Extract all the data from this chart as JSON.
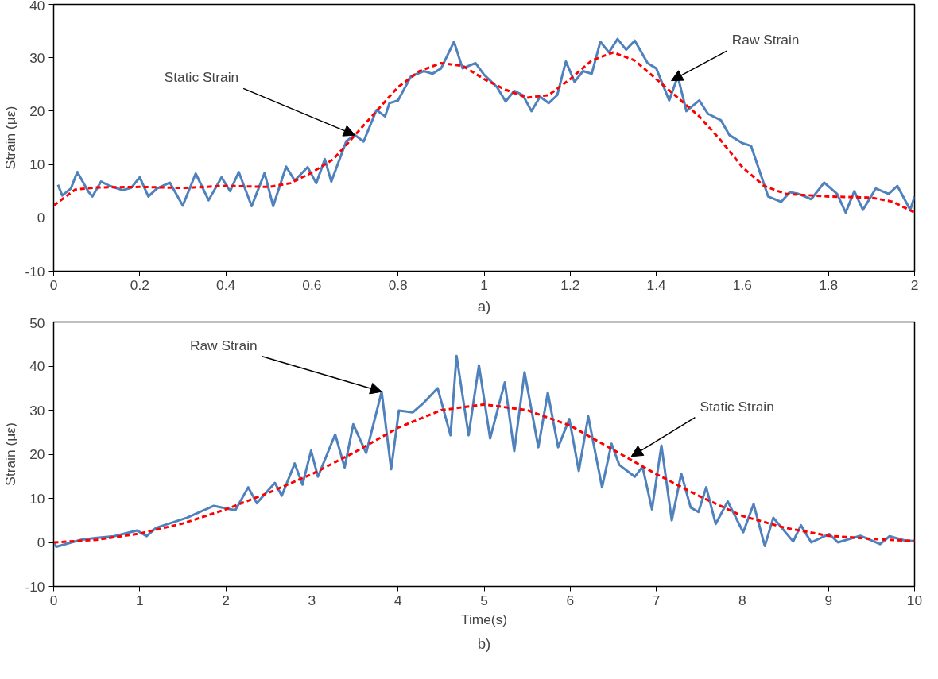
{
  "chart_data": [
    {
      "type": "line",
      "ylabel": "Strain (με)",
      "xlim": [
        0,
        2
      ],
      "ylim": [
        -10,
        40
      ],
      "xticks": [
        0,
        0.2,
        0.4,
        0.6,
        0.8,
        1,
        1.2,
        1.4,
        1.6,
        1.8,
        2
      ],
      "yticks": [
        -10,
        0,
        10,
        20,
        30,
        40
      ],
      "grid": false,
      "series": [
        {
          "color": "#4f81bd",
          "line_style": "solid",
          "x": [
            0.01,
            0.02,
            0.04,
            0.055,
            0.08,
            0.09,
            0.11,
            0.13,
            0.16,
            0.18,
            0.2,
            0.22,
            0.24,
            0.27,
            0.3,
            0.33,
            0.36,
            0.39,
            0.41,
            0.43,
            0.46,
            0.49,
            0.51,
            0.54,
            0.56,
            0.59,
            0.61,
            0.63,
            0.645,
            0.68,
            0.7,
            0.72,
            0.75,
            0.77,
            0.78,
            0.8,
            0.83,
            0.86,
            0.88,
            0.9,
            0.93,
            0.95,
            0.98,
            1.0,
            1.03,
            1.05,
            1.07,
            1.09,
            1.11,
            1.13,
            1.15,
            1.17,
            1.19,
            1.21,
            1.23,
            1.25,
            1.27,
            1.29,
            1.31,
            1.33,
            1.35,
            1.38,
            1.4,
            1.43,
            1.45,
            1.47,
            1.5,
            1.52,
            1.55,
            1.57,
            1.6,
            1.62,
            1.66,
            1.69,
            1.71,
            1.73,
            1.76,
            1.79,
            1.82,
            1.84,
            1.86,
            1.88,
            1.91,
            1.94,
            1.96,
            1.99,
            2.0
          ],
          "values": [
            6.2,
            4.2,
            5.5,
            8.6,
            5.0,
            4.0,
            6.8,
            6.0,
            5.2,
            5.6,
            7.6,
            4.0,
            5.5,
            6.6,
            2.3,
            8.3,
            3.3,
            7.6,
            5.0,
            8.6,
            2.2,
            8.4,
            2.2,
            9.6,
            7.0,
            9.5,
            6.5,
            11.0,
            6.8,
            14.4,
            15.5,
            14.3,
            20.2,
            19.0,
            21.5,
            22.0,
            26.5,
            27.5,
            27.0,
            28.0,
            33.0,
            28.0,
            29.0,
            26.8,
            24.5,
            21.8,
            23.8,
            23.0,
            20.0,
            22.7,
            21.5,
            23.0,
            29.3,
            25.5,
            27.5,
            27.0,
            33.0,
            31.0,
            33.5,
            31.5,
            33.2,
            29.0,
            28.0,
            22.0,
            26.5,
            20.0,
            22.0,
            19.5,
            18.3,
            15.5,
            14.0,
            13.5,
            4.0,
            3.0,
            4.8,
            4.5,
            3.5,
            6.6,
            4.5,
            1.0,
            5.0,
            1.5,
            5.5,
            4.5,
            6.0,
            1.5,
            4.0
          ]
        },
        {
          "color": "#ff0000",
          "line_style": "dashed",
          "x": [
            0.0,
            0.05,
            0.1,
            0.2,
            0.3,
            0.4,
            0.5,
            0.55,
            0.6,
            0.65,
            0.7,
            0.75,
            0.8,
            0.85,
            0.9,
            0.95,
            1.0,
            1.05,
            1.1,
            1.15,
            1.2,
            1.25,
            1.3,
            1.35,
            1.4,
            1.45,
            1.5,
            1.55,
            1.6,
            1.65,
            1.7,
            1.8,
            1.9,
            1.95,
            2.0
          ],
          "values": [
            2.3,
            5.3,
            5.7,
            5.8,
            5.6,
            6.0,
            5.8,
            6.5,
            8.5,
            11.0,
            15.5,
            20.0,
            24.5,
            27.5,
            29.0,
            28.5,
            26.0,
            24.0,
            22.5,
            23.0,
            26.0,
            29.5,
            31.0,
            29.5,
            26.0,
            22.5,
            19.0,
            14.5,
            9.5,
            6.0,
            4.5,
            4.0,
            3.8,
            3.0,
            1.0
          ]
        }
      ],
      "annotations": [
        {
          "text": "Static Strain",
          "x": 0.7,
          "y": 15.5
        },
        {
          "text": "Raw Strain",
          "x": 1.435,
          "y": 25.7
        },
        "a)"
      ]
    },
    {
      "type": "line",
      "xlabel": "Time(s)",
      "ylabel": "Strain (με)",
      "xlim": [
        0,
        10
      ],
      "ylim": [
        -10,
        50
      ],
      "xticks": [
        0,
        1,
        2,
        3,
        4,
        5,
        6,
        7,
        8,
        9,
        10
      ],
      "yticks": [
        -10,
        0,
        10,
        20,
        30,
        40,
        50
      ],
      "grid": false,
      "series": [
        {
          "color": "#4f81bd",
          "line_style": "solid",
          "x": [
            0,
            0.03,
            0.32,
            0.48,
            0.7,
            0.97,
            1.08,
            1.19,
            1.55,
            1.86,
            2.11,
            2.26,
            2.36,
            2.57,
            2.65,
            2.8,
            2.89,
            2.99,
            3.07,
            3.27,
            3.38,
            3.48,
            3.63,
            3.81,
            3.92,
            4.01,
            4.17,
            4.3,
            4.46,
            4.61,
            4.68,
            4.82,
            4.94,
            5.07,
            5.24,
            5.35,
            5.47,
            5.63,
            5.74,
            5.86,
            5.99,
            6.1,
            6.21,
            6.37,
            6.48,
            6.57,
            6.75,
            6.84,
            6.95,
            7.06,
            7.18,
            7.29,
            7.4,
            7.49,
            7.58,
            7.69,
            7.83,
            8.01,
            8.13,
            8.26,
            8.36,
            8.59,
            8.68,
            8.8,
            9.01,
            9.11,
            9.37,
            9.6,
            9.71,
            9.89,
            10
          ],
          "values": [
            0,
            -1,
            0.6,
            1,
            1.4,
            2.7,
            1.4,
            3.3,
            5.6,
            8.3,
            7.3,
            12.5,
            8.9,
            13.5,
            10.6,
            17.9,
            13.1,
            20.8,
            14.9,
            24.5,
            17,
            26.8,
            20.3,
            34.2,
            16.6,
            29.9,
            29.5,
            31.7,
            35,
            24.3,
            42.3,
            24.3,
            40.2,
            23.6,
            36.3,
            20.7,
            38.6,
            21.6,
            34,
            21.6,
            28,
            16.2,
            28.6,
            12.5,
            22.4,
            17.6,
            14.9,
            17.2,
            7.5,
            22,
            5,
            15.6,
            7.9,
            6.9,
            12.5,
            4.2,
            9.3,
            2.3,
            8.7,
            -0.8,
            5.6,
            0.2,
            3.9,
            0,
            1.9,
            0,
            1.5,
            -0.4,
            1.4,
            0.4,
            0.3
          ]
        },
        {
          "color": "#ff0000",
          "line_style": "dashed",
          "x": [
            0,
            0.5,
            1,
            1.5,
            2,
            2.5,
            3,
            3.5,
            4,
            4.5,
            5,
            5.5,
            6,
            6.5,
            7,
            7.5,
            8,
            8.5,
            9,
            9.5,
            10
          ],
          "values": [
            0,
            0.6,
            2,
            4.3,
            7.5,
            11.3,
            15.5,
            20.5,
            26,
            30,
            31.3,
            30,
            26.5,
            21,
            15.5,
            10.5,
            6,
            3.3,
            1.5,
            0.8,
            0.3
          ]
        }
      ],
      "annotations": [
        {
          "text": "Raw Strain",
          "x": 3.81,
          "y": 34.2
        },
        {
          "text": "Static Strain",
          "x": 6.71,
          "y": 19.5
        },
        "b)"
      ]
    }
  ]
}
